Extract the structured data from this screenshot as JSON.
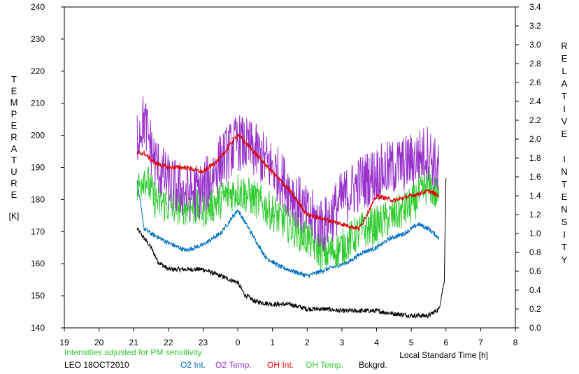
{
  "chart_data": {
    "type": "line",
    "left_axis": {
      "label": "TEMPERATURE",
      "unit": "[K]",
      "ylim": [
        140,
        240
      ],
      "ticks": [
        "140",
        "150",
        "160",
        "170",
        "180",
        "190",
        "200",
        "210",
        "220",
        "230",
        "240"
      ]
    },
    "right_axis": {
      "label": "RELATIVE INTENSITY",
      "ylim": [
        0.0,
        3.4
      ],
      "ticks": [
        "0.0",
        "0.2",
        "0.4",
        "0.6",
        "0.8",
        "1.0",
        "1.2",
        "1.4",
        "1.6",
        "1.8",
        "2.0",
        "2.2",
        "2.4",
        "2.6",
        "2.8",
        "3.0",
        "3.2",
        "3.4"
      ]
    },
    "x_axis": {
      "label": "Local Standard Time [h]",
      "ticks": [
        "19",
        "20",
        "21",
        "22",
        "23",
        "0",
        "1",
        "2",
        "3",
        "4",
        "5",
        "6",
        "7",
        "8"
      ]
    },
    "note": "Intensities adjusted for PM sensitivity",
    "site_date": "LEO 18OCT2010",
    "grid": false,
    "series": [
      {
        "name": "O2 Int.",
        "color": "#0070c0",
        "axis": "right",
        "kind": "smooth",
        "x": [
          21.1,
          21.3,
          21.5,
          22.0,
          22.5,
          23.0,
          23.5,
          24.0,
          24.4,
          24.8,
          25.2,
          25.6,
          26.0,
          26.4,
          26.8,
          27.2,
          27.6,
          28.0,
          28.4,
          28.8,
          29.2,
          29.5,
          29.8
        ],
        "y": [
          1.55,
          1.05,
          1.0,
          0.9,
          0.82,
          0.88,
          1.0,
          1.25,
          1.0,
          0.75,
          0.65,
          0.6,
          0.55,
          0.6,
          0.65,
          0.7,
          0.8,
          0.85,
          0.95,
          1.0,
          1.1,
          1.05,
          0.95
        ]
      },
      {
        "name": "O2 Temp.",
        "color": "#9933cc",
        "axis": "left",
        "kind": "noisy",
        "x": [
          21.1,
          21.3,
          21.6,
          22.0,
          22.5,
          23.0,
          23.5,
          24.0,
          24.5,
          25.0,
          25.5,
          26.0,
          26.5,
          27.0,
          27.5,
          28.0,
          28.5,
          29.0,
          29.5,
          29.8
        ],
        "y": [
          200,
          205,
          192,
          185,
          182,
          183,
          192,
          198,
          195,
          190,
          183,
          175,
          172,
          180,
          185,
          188,
          190,
          192,
          195,
          188
        ]
      },
      {
        "name": "OH Int.",
        "color": "#dd0000",
        "axis": "right",
        "kind": "smooth",
        "x": [
          21.1,
          21.3,
          21.6,
          22.0,
          22.5,
          23.0,
          23.5,
          24.0,
          24.5,
          25.0,
          25.5,
          26.0,
          26.5,
          27.0,
          27.5,
          28.0,
          28.5,
          29.0,
          29.5,
          29.8
        ],
        "y": [
          1.85,
          1.85,
          1.75,
          1.7,
          1.7,
          1.65,
          1.8,
          2.05,
          1.85,
          1.65,
          1.45,
          1.2,
          1.15,
          1.1,
          1.05,
          1.4,
          1.35,
          1.4,
          1.45,
          1.4
        ]
      },
      {
        "name": "OH Temp.",
        "color": "#33cc33",
        "axis": "left",
        "kind": "noisy",
        "x": [
          21.1,
          21.3,
          21.6,
          22.0,
          22.5,
          23.0,
          23.5,
          24.0,
          24.5,
          25.0,
          25.5,
          26.0,
          26.5,
          27.0,
          27.5,
          28.0,
          28.5,
          29.0,
          29.5,
          29.8
        ],
        "y": [
          183,
          188,
          180,
          178,
          178,
          177,
          180,
          183,
          180,
          176,
          172,
          168,
          163,
          165,
          170,
          172,
          175,
          178,
          185,
          180
        ]
      },
      {
        "name": "Bckgrd.",
        "color": "#000000",
        "axis": "right",
        "kind": "smooth",
        "x": [
          21.1,
          21.3,
          21.5,
          21.7,
          22.0,
          22.5,
          23.0,
          23.5,
          24.0,
          24.2,
          24.5,
          25.0,
          25.5,
          26.0,
          26.5,
          27.0,
          27.5,
          28.0,
          28.5,
          29.0,
          29.5,
          29.8,
          29.95,
          30.0
        ],
        "y": [
          1.05,
          0.95,
          0.85,
          0.7,
          0.62,
          0.62,
          0.62,
          0.55,
          0.48,
          0.35,
          0.28,
          0.25,
          0.25,
          0.2,
          0.2,
          0.18,
          0.18,
          0.18,
          0.15,
          0.13,
          0.13,
          0.2,
          0.5,
          1.6
        ]
      }
    ]
  }
}
